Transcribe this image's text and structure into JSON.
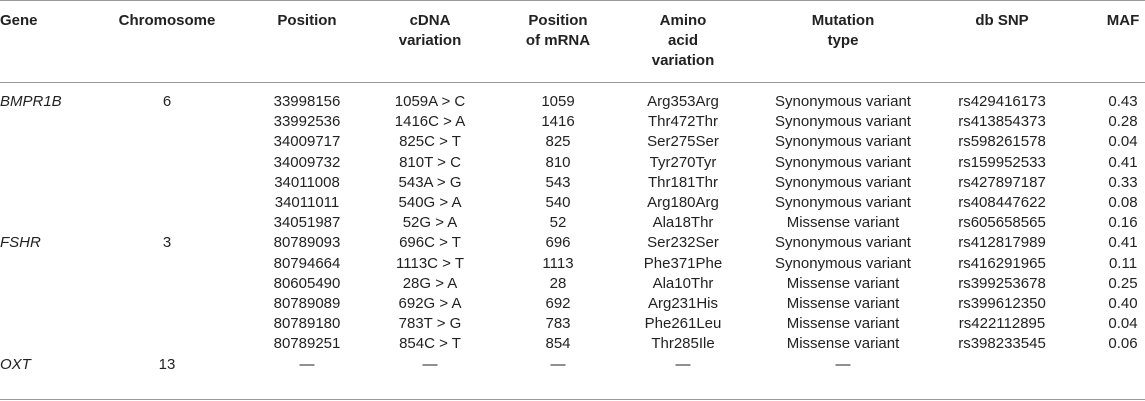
{
  "headers": {
    "gene": "Gene",
    "chromosome": "Chromosome",
    "position": "Position",
    "cdna": [
      "cDNA",
      "variation"
    ],
    "mrna": [
      "Position",
      "of mRNA"
    ],
    "aa": [
      "Amino",
      "acid",
      "variation"
    ],
    "mut": [
      "Mutation",
      "type"
    ],
    "snp": "db SNP",
    "maf": "MAF"
  },
  "rows": [
    {
      "gene": "BMPR1B",
      "chrom": "6",
      "pos": "33998156",
      "cdna": "1059A > C",
      "mrna": "1059",
      "aa": "Arg353Arg",
      "mut": "Synonymous variant",
      "snp": "rs429416173",
      "maf": "0.43"
    },
    {
      "gene": "",
      "chrom": "",
      "pos": "33992536",
      "cdna": "1416C > A",
      "mrna": "1416",
      "aa": "Thr472Thr",
      "mut": "Synonymous variant",
      "snp": "rs413854373",
      "maf": "0.28"
    },
    {
      "gene": "",
      "chrom": "",
      "pos": "34009717",
      "cdna": "825C > T",
      "mrna": "825",
      "aa": "Ser275Ser",
      "mut": "Synonymous variant",
      "snp": "rs598261578",
      "maf": "0.04"
    },
    {
      "gene": "",
      "chrom": "",
      "pos": "34009732",
      "cdna": "810T > C",
      "mrna": "810",
      "aa": "Tyr270Tyr",
      "mut": "Synonymous variant",
      "snp": "rs159952533",
      "maf": "0.41"
    },
    {
      "gene": "",
      "chrom": "",
      "pos": "34011008",
      "cdna": "543A > G",
      "mrna": "543",
      "aa": "Thr181Thr",
      "mut": "Synonymous variant",
      "snp": "rs427897187",
      "maf": "0.33"
    },
    {
      "gene": "",
      "chrom": "",
      "pos": "34011011",
      "cdna": "540G > A",
      "mrna": "540",
      "aa": "Arg180Arg",
      "mut": "Synonymous variant",
      "snp": "rs408447622",
      "maf": "0.08"
    },
    {
      "gene": "",
      "chrom": "",
      "pos": "34051987",
      "cdna": "52G > A",
      "mrna": "52",
      "aa": "Ala18Thr",
      "mut": "Missense variant",
      "snp": "rs605658565",
      "maf": "0.16"
    },
    {
      "gene": "FSHR",
      "chrom": "3",
      "pos": "80789093",
      "cdna": "696C > T",
      "mrna": "696",
      "aa": "Ser232Ser",
      "mut": "Synonymous variant",
      "snp": "rs412817989",
      "maf": "0.41"
    },
    {
      "gene": "",
      "chrom": "",
      "pos": "80794664",
      "cdna": "1113C > T",
      "mrna": "1113",
      "aa": "Phe371Phe",
      "mut": "Synonymous variant",
      "snp": "rs416291965",
      "maf": "0.11"
    },
    {
      "gene": "",
      "chrom": "",
      "pos": "80605490",
      "cdna": "28G > A",
      "mrna": "28",
      "aa": "Ala10Thr",
      "mut": "Missense variant",
      "snp": "rs399253678",
      "maf": "0.25"
    },
    {
      "gene": "",
      "chrom": "",
      "pos": "80789089",
      "cdna": "692G > A",
      "mrna": "692",
      "aa": "Arg231His",
      "mut": "Missense variant",
      "snp": "rs399612350",
      "maf": "0.40"
    },
    {
      "gene": "",
      "chrom": "",
      "pos": "80789180",
      "cdna": "783T > G",
      "mrna": "783",
      "aa": "Phe261Leu",
      "mut": "Missense variant",
      "snp": "rs422112895",
      "maf": "0.04"
    },
    {
      "gene": "",
      "chrom": "",
      "pos": "80789251",
      "cdna": "854C > T",
      "mrna": "854",
      "aa": "Thr285Ile",
      "mut": "Missense variant",
      "snp": "rs398233545",
      "maf": "0.06"
    },
    {
      "gene": "OXT",
      "chrom": "13",
      "pos": "—",
      "cdna": "—",
      "mrna": "—",
      "aa": "—",
      "mut": "—",
      "snp": "",
      "maf": ""
    }
  ]
}
